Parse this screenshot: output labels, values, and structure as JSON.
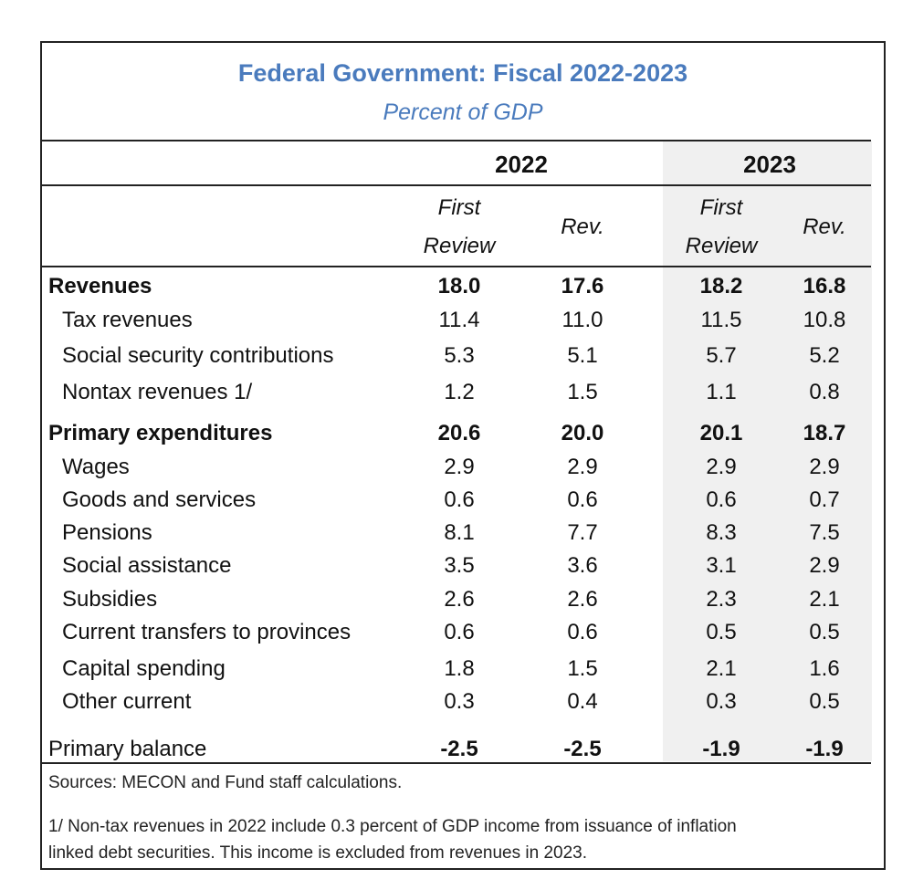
{
  "title": "Federal Government: Fiscal 2022-2023",
  "subtitle": "Percent of GDP",
  "years": [
    "2022",
    "2023"
  ],
  "column_headers": [
    [
      "First",
      "Review"
    ],
    [
      "Rev."
    ],
    [
      "First",
      "Review"
    ],
    [
      "Rev."
    ]
  ],
  "rows": [
    {
      "label": "Revenues",
      "values": [
        "18.0",
        "17.6",
        "18.2",
        "16.8"
      ],
      "bold": true,
      "indent": false
    },
    {
      "label": "Tax revenues",
      "values": [
        "11.4",
        "11.0",
        "11.5",
        "10.8"
      ],
      "bold": false,
      "indent": true
    },
    {
      "label": "Social security contributions",
      "values": [
        "5.3",
        "5.1",
        "5.7",
        "5.2"
      ],
      "bold": false,
      "indent": true
    },
    {
      "label": "Nontax revenues 1/",
      "values": [
        "1.2",
        "1.5",
        "1.1",
        "0.8"
      ],
      "bold": false,
      "indent": true
    },
    {
      "label": "Primary expenditures",
      "values": [
        "20.6",
        "20.0",
        "20.1",
        "18.7"
      ],
      "bold": true,
      "indent": false
    },
    {
      "label": "Wages",
      "values": [
        "2.9",
        "2.9",
        "2.9",
        "2.9"
      ],
      "bold": false,
      "indent": true
    },
    {
      "label": "Goods and services",
      "values": [
        "0.6",
        "0.6",
        "0.6",
        "0.7"
      ],
      "bold": false,
      "indent": true
    },
    {
      "label": "Pensions",
      "values": [
        "8.1",
        "7.7",
        "8.3",
        "7.5"
      ],
      "bold": false,
      "indent": true
    },
    {
      "label": "Social assistance",
      "values": [
        "3.5",
        "3.6",
        "3.1",
        "2.9"
      ],
      "bold": false,
      "indent": true
    },
    {
      "label": "Subsidies",
      "values": [
        "2.6",
        "2.6",
        "2.3",
        "2.1"
      ],
      "bold": false,
      "indent": true
    },
    {
      "label": "Current transfers to provinces",
      "values": [
        "0.6",
        "0.6",
        "0.5",
        "0.5"
      ],
      "bold": false,
      "indent": true
    },
    {
      "label": "Capital spending",
      "values": [
        "1.8",
        "1.5",
        "2.1",
        "1.6"
      ],
      "bold": false,
      "indent": true
    },
    {
      "label": "Other current",
      "values": [
        "0.3",
        "0.4",
        "0.3",
        "0.5"
      ],
      "bold": false,
      "indent": true
    },
    {
      "label": "Primary balance",
      "values": [
        "-2.5",
        "-2.5",
        "-1.9",
        "-1.9"
      ],
      "bold": false,
      "bold_values": true,
      "indent": false
    }
  ],
  "sources": "Sources: MECON and Fund staff calculations.",
  "footnote_lines": [
    "1/ Non-tax revenues in 2022 include 0.3 percent of GDP income from issuance of inflation",
    "linked debt securities. This income is excluded from revenues in 2023."
  ]
}
